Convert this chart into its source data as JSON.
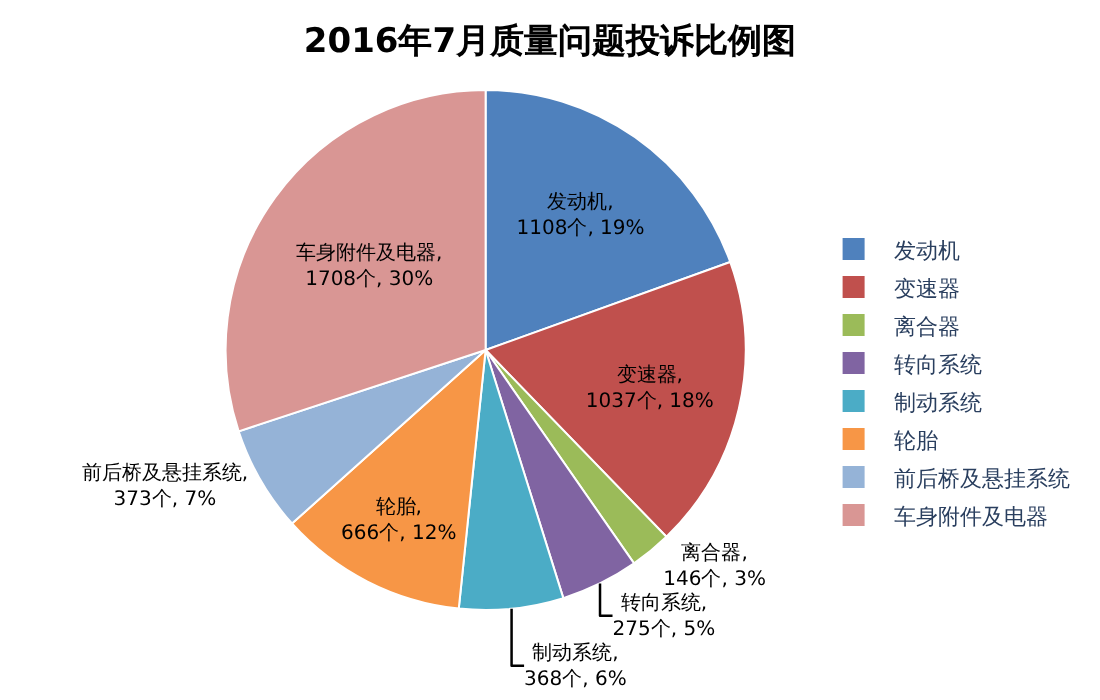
{
  "chart_data": {
    "type": "pie",
    "title": "2016年7月质量问题投诉比例图",
    "categories": [
      "发动机",
      "变速器",
      "离合器",
      "转向系统",
      "制动系统",
      "轮胎",
      "前后桥及悬挂系统",
      "车身附件及电器"
    ],
    "values": [
      1108,
      1037,
      146,
      275,
      368,
      666,
      373,
      1708
    ],
    "value_labels": [
      "发动机, 1108个, 19%",
      "变速器, 1037个, 18%",
      "离合器, 146个, 3%",
      "转向系统, 275个, 5%",
      "制动系统, 368个, 6%",
      "轮胎, 666个, 12%",
      "前后桥及悬挂系统, 373个, 7%",
      "车身附件及电器, 1708个, 30%"
    ],
    "colors": [
      "#4f81bd",
      "#c0504d",
      "#9bbb59",
      "#8064a2",
      "#4bacc6",
      "#f79646",
      "#95b3d7",
      "#d99694"
    ],
    "legend": "right"
  }
}
